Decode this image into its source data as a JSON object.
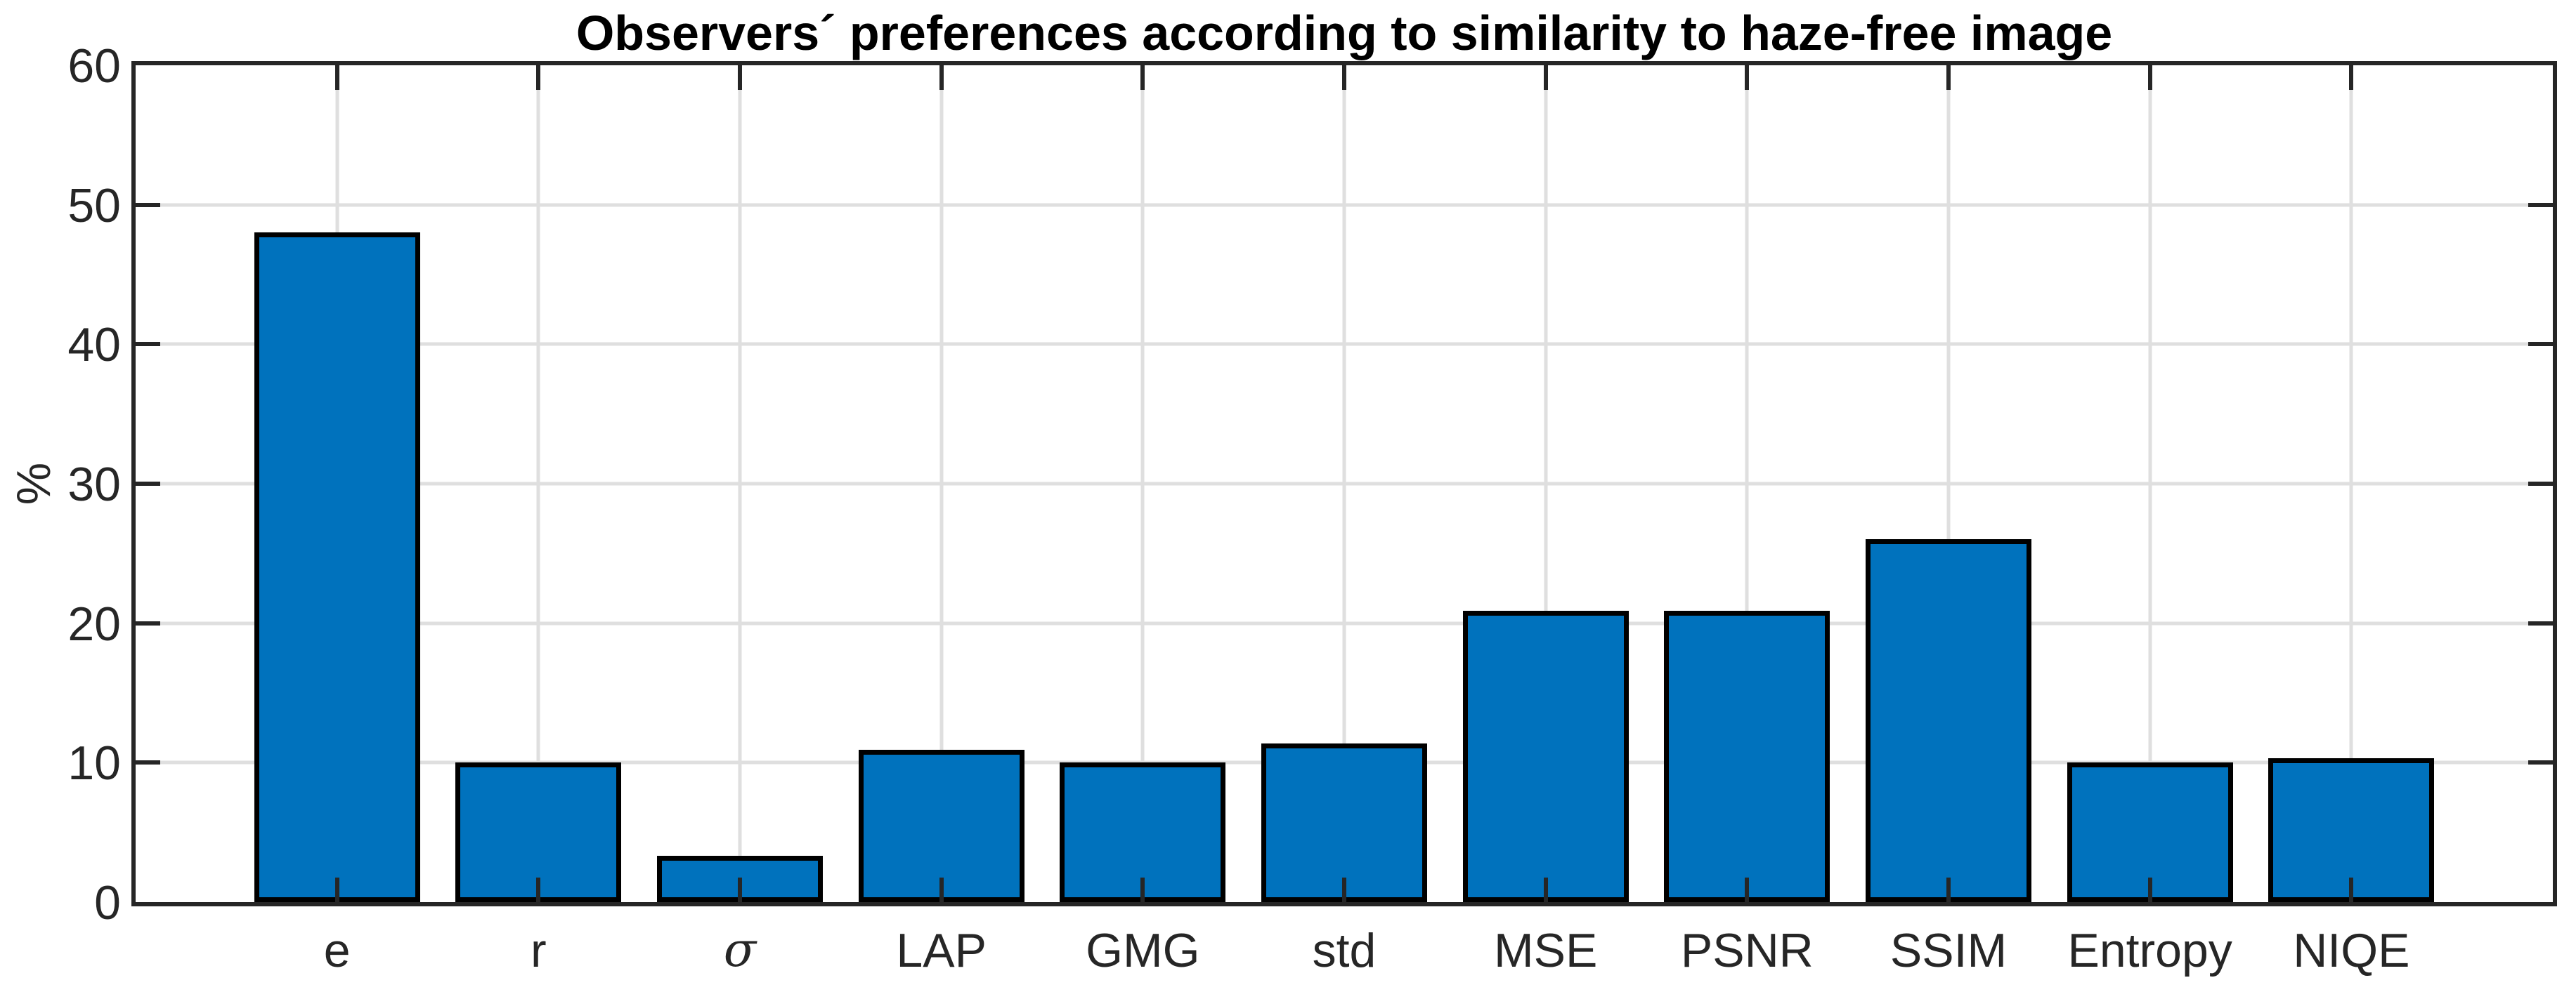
{
  "chart_data": {
    "type": "bar",
    "title": "Observers´ preferences according to similarity to haze-free image",
    "xlabel": "",
    "ylabel": "%",
    "categories": [
      "e",
      "r",
      "σ",
      "LAP",
      "GMG",
      "std",
      "MSE",
      "PSNR",
      "SSIM",
      "Entropy",
      "NIQE"
    ],
    "values": [
      48,
      10,
      3.3,
      10.9,
      10,
      11.4,
      20.9,
      20.9,
      26,
      10,
      10.3
    ],
    "italic_categories": [
      "σ"
    ],
    "ylim": [
      0,
      60
    ],
    "yticks": [
      0,
      10,
      20,
      30,
      40,
      50,
      60
    ],
    "grid": "on",
    "legend": "none",
    "bar_color": "#0072BD",
    "bar_edge_color": "#000000",
    "axis_color": "#262626",
    "grid_color": "#DFDFDF",
    "bar_width_fraction": 0.823
  }
}
